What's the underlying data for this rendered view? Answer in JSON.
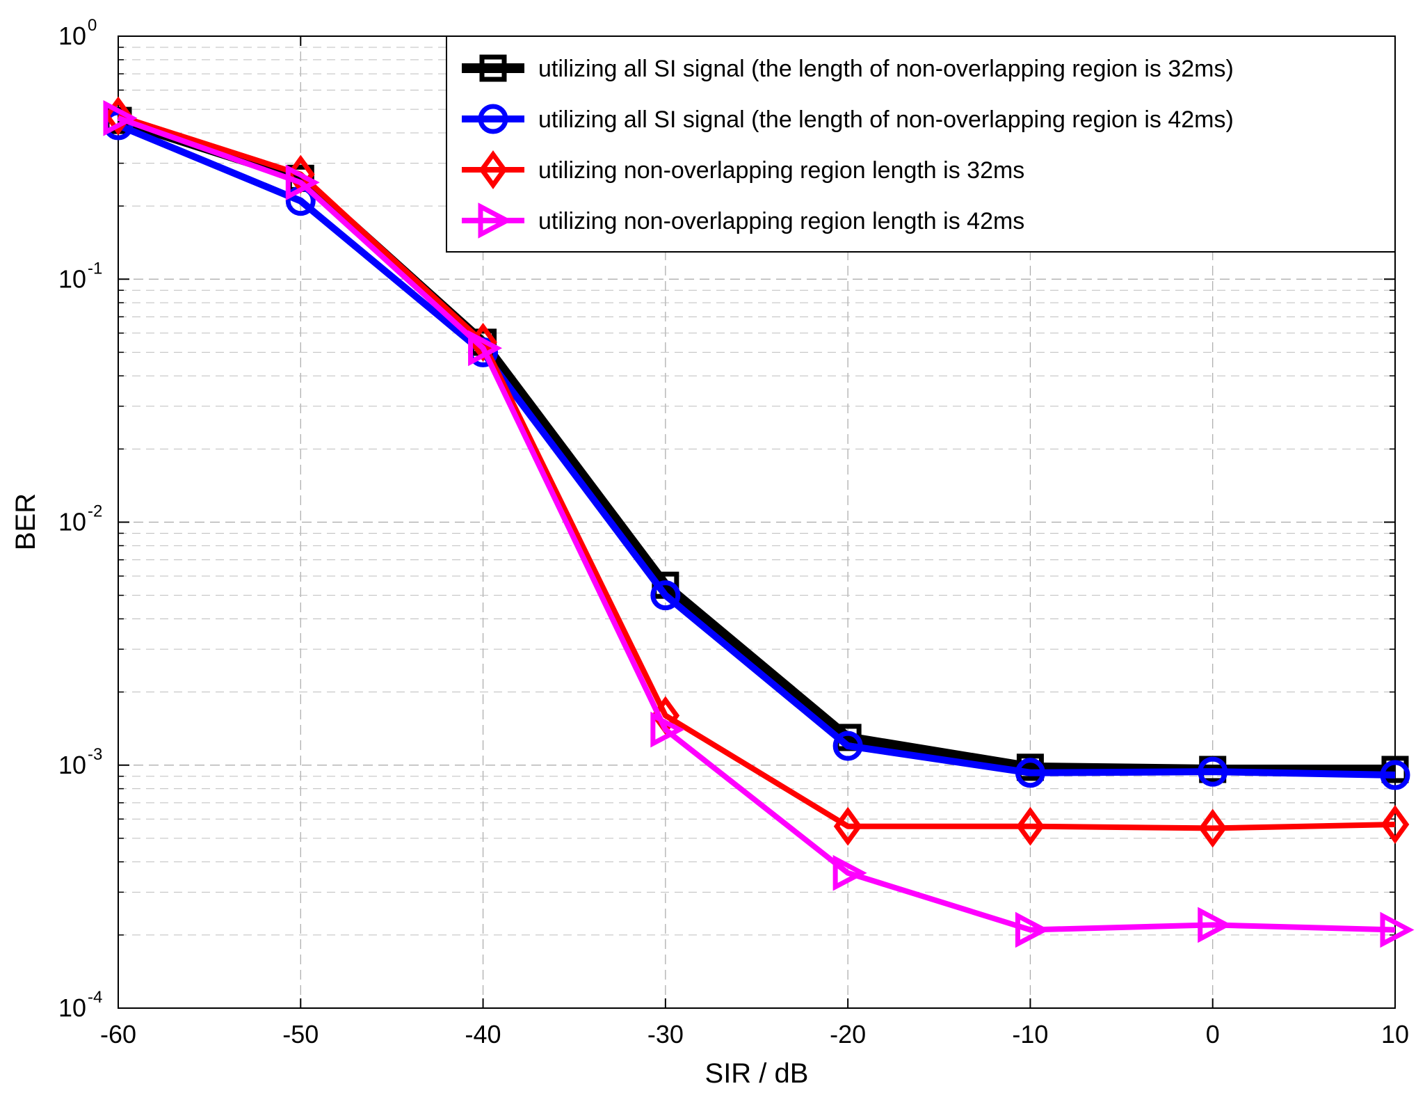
{
  "chart_data": {
    "type": "line",
    "title": "",
    "xlabel": "SIR / dB",
    "ylabel": "BER",
    "x": [
      -60,
      -50,
      -40,
      -30,
      -20,
      -10,
      0,
      10
    ],
    "xlim": [
      -60,
      10
    ],
    "ylim": [
      0.0001,
      1
    ],
    "yscale": "log",
    "grid": true,
    "legend_position": "top-right",
    "xticks": [
      "-60",
      "-50",
      "-40",
      "-30",
      "-20",
      "-10",
      "0",
      "10"
    ],
    "yticks": [
      {
        "base": "10",
        "exp": "0"
      },
      {
        "base": "10",
        "exp": "-1"
      },
      {
        "base": "10",
        "exp": "-2"
      },
      {
        "base": "10",
        "exp": "-3"
      },
      {
        "base": "10",
        "exp": "-4"
      }
    ],
    "series": [
      {
        "name": "utilizing all SI signal (the length of  non-overlapping region  is 32ms)",
        "color": "#000000",
        "marker": "square",
        "values": [
          0.45,
          0.26,
          0.055,
          0.0055,
          0.0013,
          0.00098,
          0.00096,
          0.00096
        ]
      },
      {
        "name": "utilizing all SI signal (the length of  non-overlapping region  is 42ms)",
        "color": "#0000ff",
        "marker": "circle",
        "values": [
          0.43,
          0.21,
          0.05,
          0.005,
          0.0012,
          0.00093,
          0.00094,
          0.00091
        ]
      },
      {
        "name": "utilizing non-overlapping region length is 32ms",
        "color": "#ff0000",
        "marker": "diamond",
        "values": [
          0.47,
          0.27,
          0.055,
          0.0016,
          0.00056,
          0.00056,
          0.00055,
          0.00057
        ]
      },
      {
        "name": "utilizing non-overlapping region length is 42ms",
        "color": "#ff00ff",
        "marker": "triangle-right",
        "values": [
          0.46,
          0.25,
          0.052,
          0.0014,
          0.00036,
          0.00021,
          0.00022,
          0.00021
        ]
      }
    ]
  }
}
